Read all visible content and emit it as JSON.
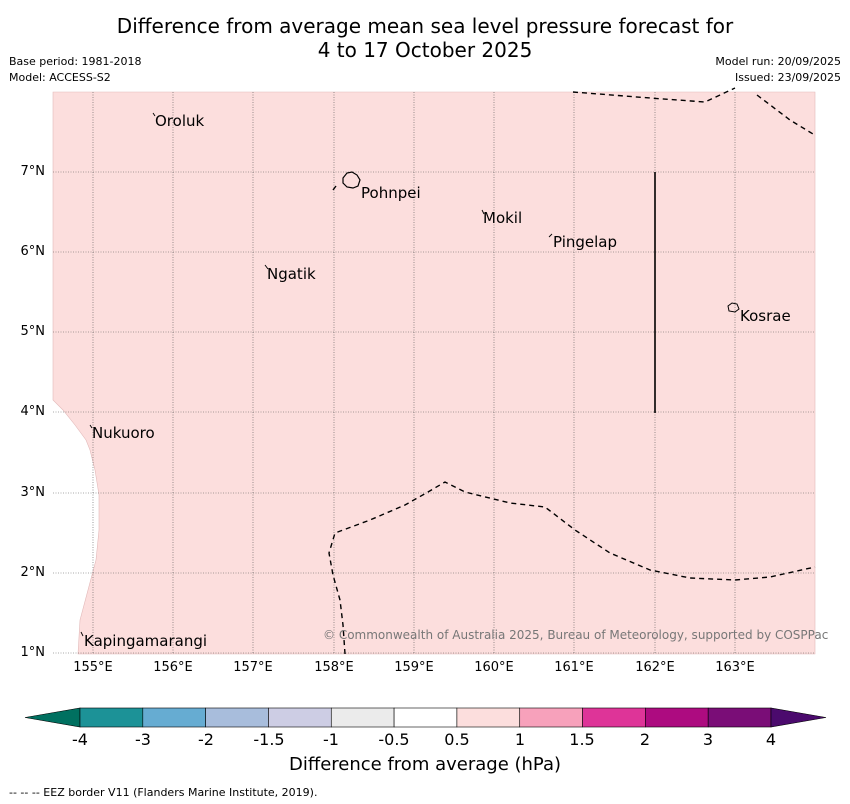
{
  "title": {
    "line1": "Difference from average mean sea level pressure forecast for",
    "line2": "4 to 17 October 2025"
  },
  "meta": {
    "base_period": "Base period: 1981-2018",
    "model": "Model: ACCESS-S2",
    "model_run": "Model run: 20/09/2025",
    "issued": "Issued: 23/09/2025"
  },
  "map": {
    "lat_labels": [
      "7°N",
      "6°N",
      "5°N",
      "4°N",
      "3°N",
      "2°N",
      "1°N"
    ],
    "lon_labels": [
      "155°E",
      "156°E",
      "157°E",
      "158°E",
      "159°E",
      "160°E",
      "161°E",
      "162°E",
      "163°E"
    ],
    "places": {
      "oroluk": "Oroluk",
      "pohnpei": "Pohnpei",
      "mokil": "Mokil",
      "pingelap": "Pingelap",
      "ngatik": "Ngatik",
      "kosrae": "Kosrae",
      "nukuoro": "Nukuoro",
      "kapingamarangi": "Kapingamarangi"
    },
    "fill_color": "#fcdedd",
    "copyright": "© Commonwealth of Australia 2025, Bureau of Meteorology, supported by COSPPac"
  },
  "colorbar": {
    "label": "Difference from average (hPa)",
    "ticks": [
      "-4",
      "-3",
      "-2",
      "-1.5",
      "-1",
      "-0.5",
      "0.5",
      "1",
      "1.5",
      "2",
      "3",
      "4"
    ],
    "colors": [
      "#007060",
      "#1c9297",
      "#66acd2",
      "#a8bddc",
      "#cdcde4",
      "#ebebeb",
      "#ffffff",
      "#fcdedd",
      "#f7a1bb",
      "#de3498",
      "#ad0b80",
      "#7a0d77",
      "#4b0a6d"
    ]
  },
  "footnote": "--  --  -- EEZ border V11 (Flanders Marine Institute, 2019)."
}
